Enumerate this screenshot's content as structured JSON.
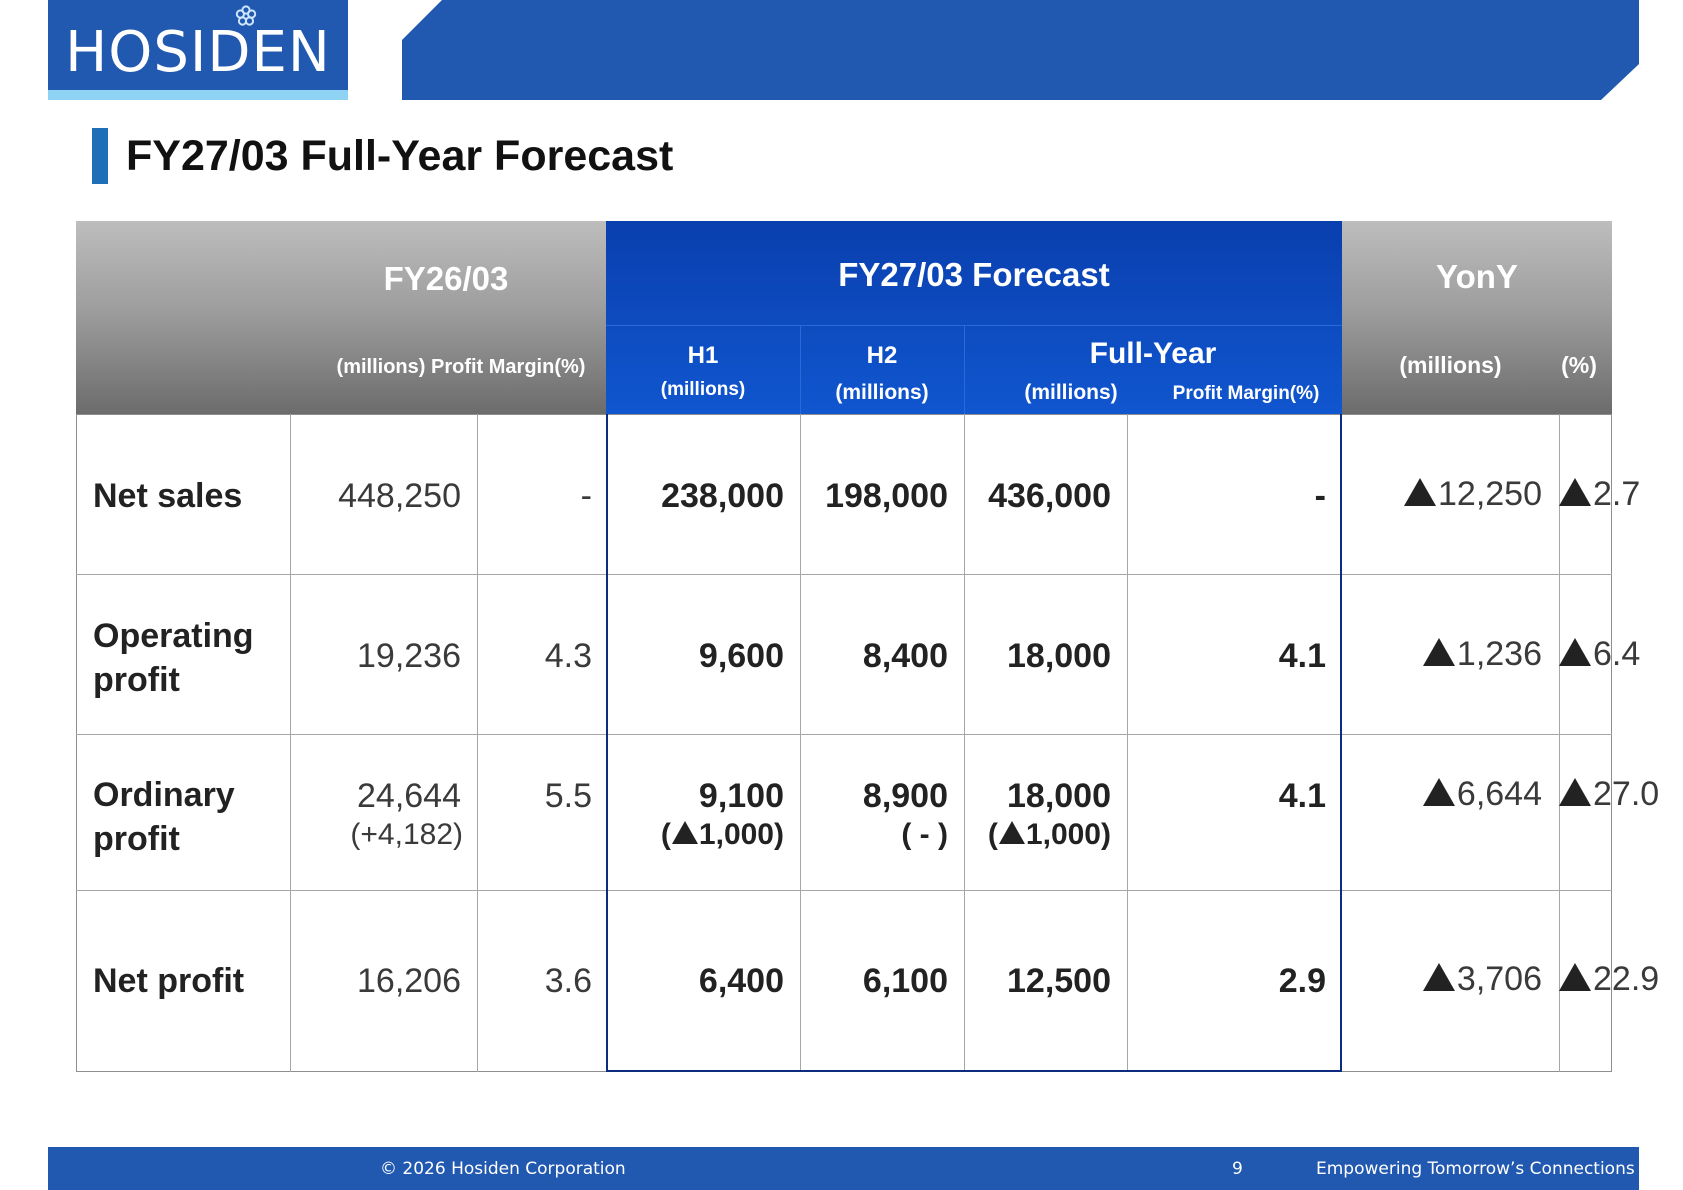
{
  "header": {
    "logo_text": "HOSIDEN"
  },
  "page_title": "FY27/03 Full-Year Forecast",
  "table": {
    "fy26": {
      "title": "FY26/03",
      "sub": "(millions) Profit Margin(%)"
    },
    "forecast": {
      "title": "FY27/03 Forecast",
      "h1": "H1",
      "h1_unit": "(millions)",
      "h2": "H2",
      "h2_unit": "(millions)",
      "full": "Full-Year",
      "full_unit": "(millions)",
      "full_margin": "Profit Margin(%)"
    },
    "yony": {
      "title": "YonY",
      "millions": "(millions)",
      "percent": "(%)"
    },
    "rows": [
      {
        "label1": "Net sales",
        "label2": "",
        "fy26": "448,250",
        "fy26_sub": "",
        "fy26_margin": "-",
        "h1": "238,000",
        "h1_sub": "",
        "h2": "198,000",
        "h2_sub": "",
        "full": "436,000",
        "full_sub": "",
        "full_margin": "-",
        "yoy_m": "12,250",
        "yoy_p": "2.7"
      },
      {
        "label1": "Operating",
        "label2": "profit",
        "fy26": "19,236",
        "fy26_sub": "",
        "fy26_margin": "4.3",
        "h1": "9,600",
        "h1_sub": "",
        "h2": "8,400",
        "h2_sub": "",
        "full": "18,000",
        "full_sub": "",
        "full_margin": "4.1",
        "yoy_m": "1,236",
        "yoy_p": "6.4"
      },
      {
        "label1": "Ordinary",
        "label2": "profit",
        "fy26": "24,644",
        "fy26_sub": "(+4,182)",
        "fy26_margin": "5.5",
        "h1": "9,100",
        "h1_sub_pre": "(",
        "h1_sub_val": "1,000)",
        "h2": "8,900",
        "h2_sub": "( - )",
        "full": "18,000",
        "full_sub_pre": "(",
        "full_sub_val": "1,000)",
        "full_margin": "4.1",
        "yoy_m": "6,644",
        "yoy_p": "27.0"
      },
      {
        "label1": "Net profit",
        "label2": "",
        "fy26": "16,206",
        "fy26_sub": "",
        "fy26_margin": "3.6",
        "h1": "6,400",
        "h1_sub": "",
        "h2": "6,100",
        "h2_sub": "",
        "full": "12,500",
        "full_sub": "",
        "full_margin": "2.9",
        "yoy_m": "3,706",
        "yoy_p": "22.9"
      }
    ]
  },
  "footer": {
    "copyright": "© 2026 Hosiden Corporation",
    "page_number": "9",
    "tagline": "Empowering Tomorrow’s Connections"
  }
}
